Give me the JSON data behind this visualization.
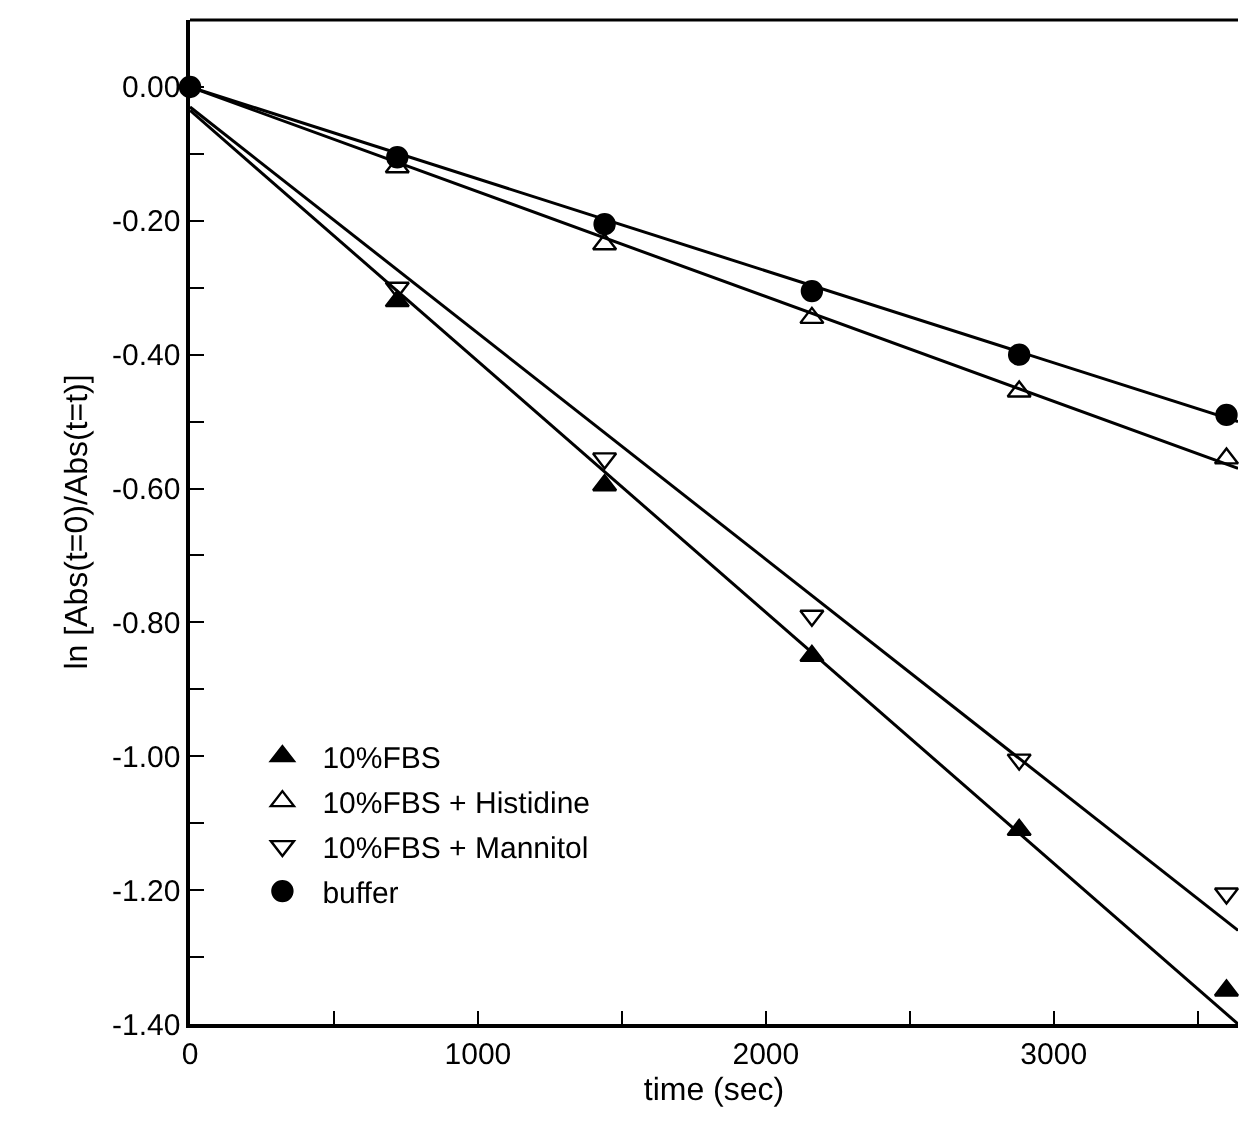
{
  "chart_data": {
    "type": "scatter",
    "xlabel": "time (sec)",
    "ylabel": "ln [Abs(t=0)/Abs(t=t)]",
    "xlim": [
      0,
      3640
    ],
    "ylim": [
      -1.4,
      0.1
    ],
    "xticks": [
      0,
      1000,
      2000,
      3000
    ],
    "yticks": [
      {
        "value": 0,
        "label": "0.00"
      },
      {
        "value": -0.2,
        "label": "-0.20"
      },
      {
        "value": -0.4,
        "label": "-0.40"
      },
      {
        "value": -0.6,
        "label": "-0.60"
      },
      {
        "value": -0.8,
        "label": "-0.80"
      },
      {
        "value": -1.0,
        "label": "-1.00"
      },
      {
        "value": -1.2,
        "label": "-1.20"
      },
      {
        "value": -1.4,
        "label": "-1.40"
      }
    ],
    "legend": "bottom left",
    "series": [
      {
        "type": "line",
        "color": "#000000",
        "x": [
          0,
          3640
        ],
        "values": [
          -0.035,
          -1.4
        ]
      },
      {
        "type": "line",
        "color": "#000000",
        "x": [
          0,
          3640
        ],
        "values": [
          -0.03,
          -1.26
        ]
      },
      {
        "type": "line",
        "color": "#000000",
        "x": [
          0,
          3640
        ],
        "values": [
          0,
          -0.57
        ]
      },
      {
        "type": "line",
        "color": "#000000",
        "x": [
          0,
          3640
        ],
        "values": [
          0,
          -0.5
        ]
      },
      {
        "name": "10%FBS",
        "marker": "triangle",
        "color": "#000000",
        "x": [
          720,
          1440,
          2160,
          2880,
          3600
        ],
        "values": [
          -0.32,
          -0.595,
          -0.85,
          -1.11,
          -1.35
        ]
      },
      {
        "name": "10%FBS + Histidine",
        "marker": "triangle-open",
        "color": "#000000",
        "x": [
          720,
          1440,
          2160,
          2880,
          3600
        ],
        "values": [
          -0.12,
          -0.235,
          -0.345,
          -0.455,
          -0.555
        ]
      },
      {
        "name": "10%FBS + Mannitol",
        "marker": "triangle-down-open",
        "color": "#000000",
        "x": [
          720,
          1440,
          2160,
          2880,
          3600
        ],
        "values": [
          -0.3,
          -0.555,
          -0.79,
          -1.005,
          -1.205
        ]
      },
      {
        "name": "buffer",
        "marker": "circle",
        "color": "#000000",
        "x": [
          0,
          720,
          1440,
          2160,
          2880,
          3600
        ],
        "values": [
          0,
          -0.105,
          -0.205,
          -0.305,
          -0.4,
          -0.49
        ]
      }
    ]
  }
}
